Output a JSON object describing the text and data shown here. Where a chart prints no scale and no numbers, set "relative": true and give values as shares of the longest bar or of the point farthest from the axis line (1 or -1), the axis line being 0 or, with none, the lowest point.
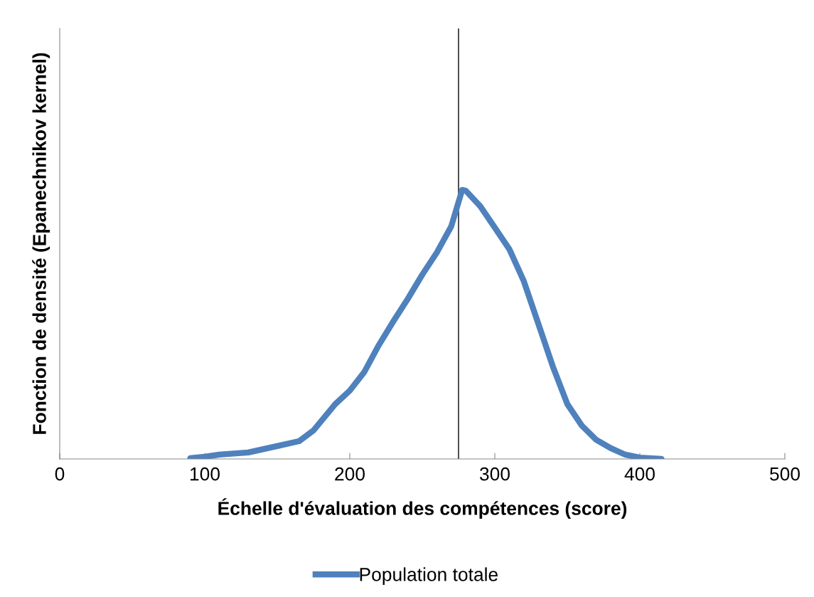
{
  "chart_data": {
    "type": "line",
    "relative": true,
    "xlabel": "Échelle d'évaluation des compétences (score)",
    "ylabel": "Fonction de densité (Epanechnikov kernel)",
    "xlim": [
      0,
      500
    ],
    "xticks": [
      0,
      100,
      200,
      300,
      400,
      500
    ],
    "x": [
      90,
      100,
      110,
      130,
      150,
      165,
      175,
      190,
      200,
      210,
      220,
      230,
      240,
      250,
      260,
      270,
      277.5,
      280,
      290,
      300,
      310,
      320,
      330,
      340,
      350,
      360,
      370,
      380,
      390,
      400,
      415
    ],
    "series": [
      {
        "name": "Population totale",
        "color": "#4f81bd",
        "values": [
          0.003,
          0.008,
          0.016,
          0.024,
          0.048,
          0.066,
          0.106,
          0.204,
          0.254,
          0.323,
          0.423,
          0.511,
          0.595,
          0.685,
          0.767,
          0.865,
          1.0,
          0.997,
          0.939,
          0.86,
          0.78,
          0.661,
          0.503,
          0.344,
          0.204,
          0.124,
          0.071,
          0.04,
          0.016,
          0.005,
          0.0
        ]
      }
    ],
    "ref_lines": [
      {
        "axis": "x",
        "value": 275,
        "color": "#000000"
      }
    ],
    "legend": "bottom",
    "marker": "none",
    "line_style": "solid"
  }
}
